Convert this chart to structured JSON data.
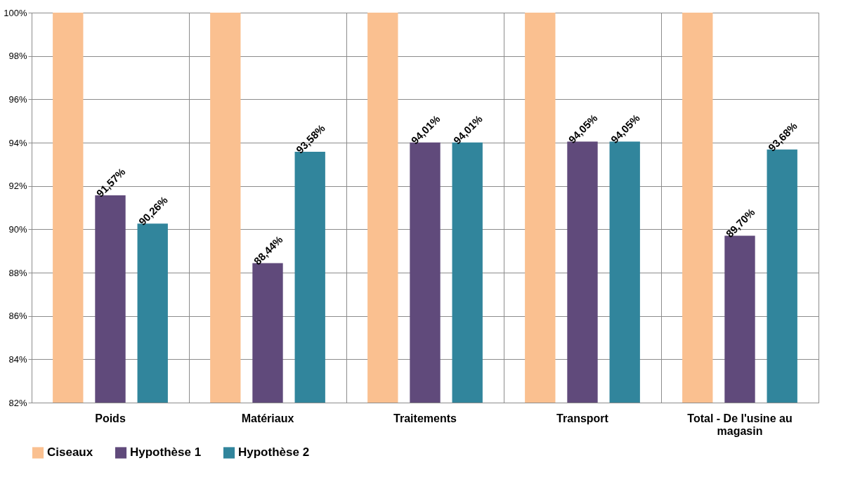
{
  "chart_data": {
    "type": "bar",
    "categories": [
      "Poids",
      "Matériaux",
      "Traitements",
      "Transport",
      "Total - De l'usine au magasin"
    ],
    "series": [
      {
        "name": "Ciseaux",
        "color": "#fac090",
        "values": [
          100,
          100,
          100,
          100,
          100
        ]
      },
      {
        "name": "Hypothèse 1",
        "color": "#604a7b",
        "values": [
          91.57,
          88.44,
          94.01,
          94.05,
          89.7
        ],
        "value_labels": [
          "91,57%",
          "88,44%",
          "94,01%",
          "94,05%",
          "89,70%"
        ]
      },
      {
        "name": "Hypothèse 2",
        "color": "#31859c",
        "values": [
          90.26,
          93.58,
          94.01,
          94.05,
          93.68
        ],
        "value_labels": [
          "90,26%",
          "93,58%",
          "94,01%",
          "94,05%",
          "93,68%"
        ]
      }
    ],
    "ylim": [
      82,
      100
    ],
    "yticks": [
      {
        "value": 82,
        "label": "82%"
      },
      {
        "value": 84,
        "label": "84%"
      },
      {
        "value": 86,
        "label": "86%"
      },
      {
        "value": 88,
        "label": "88%"
      },
      {
        "value": 90,
        "label": "90%"
      },
      {
        "value": 92,
        "label": "92%"
      },
      {
        "value": 94,
        "label": "94%"
      },
      {
        "value": 96,
        "label": "96%"
      },
      {
        "value": 98,
        "label": "98%"
      },
      {
        "value": 100,
        "label": "100%"
      }
    ],
    "grid": true,
    "legend": "bottom"
  }
}
